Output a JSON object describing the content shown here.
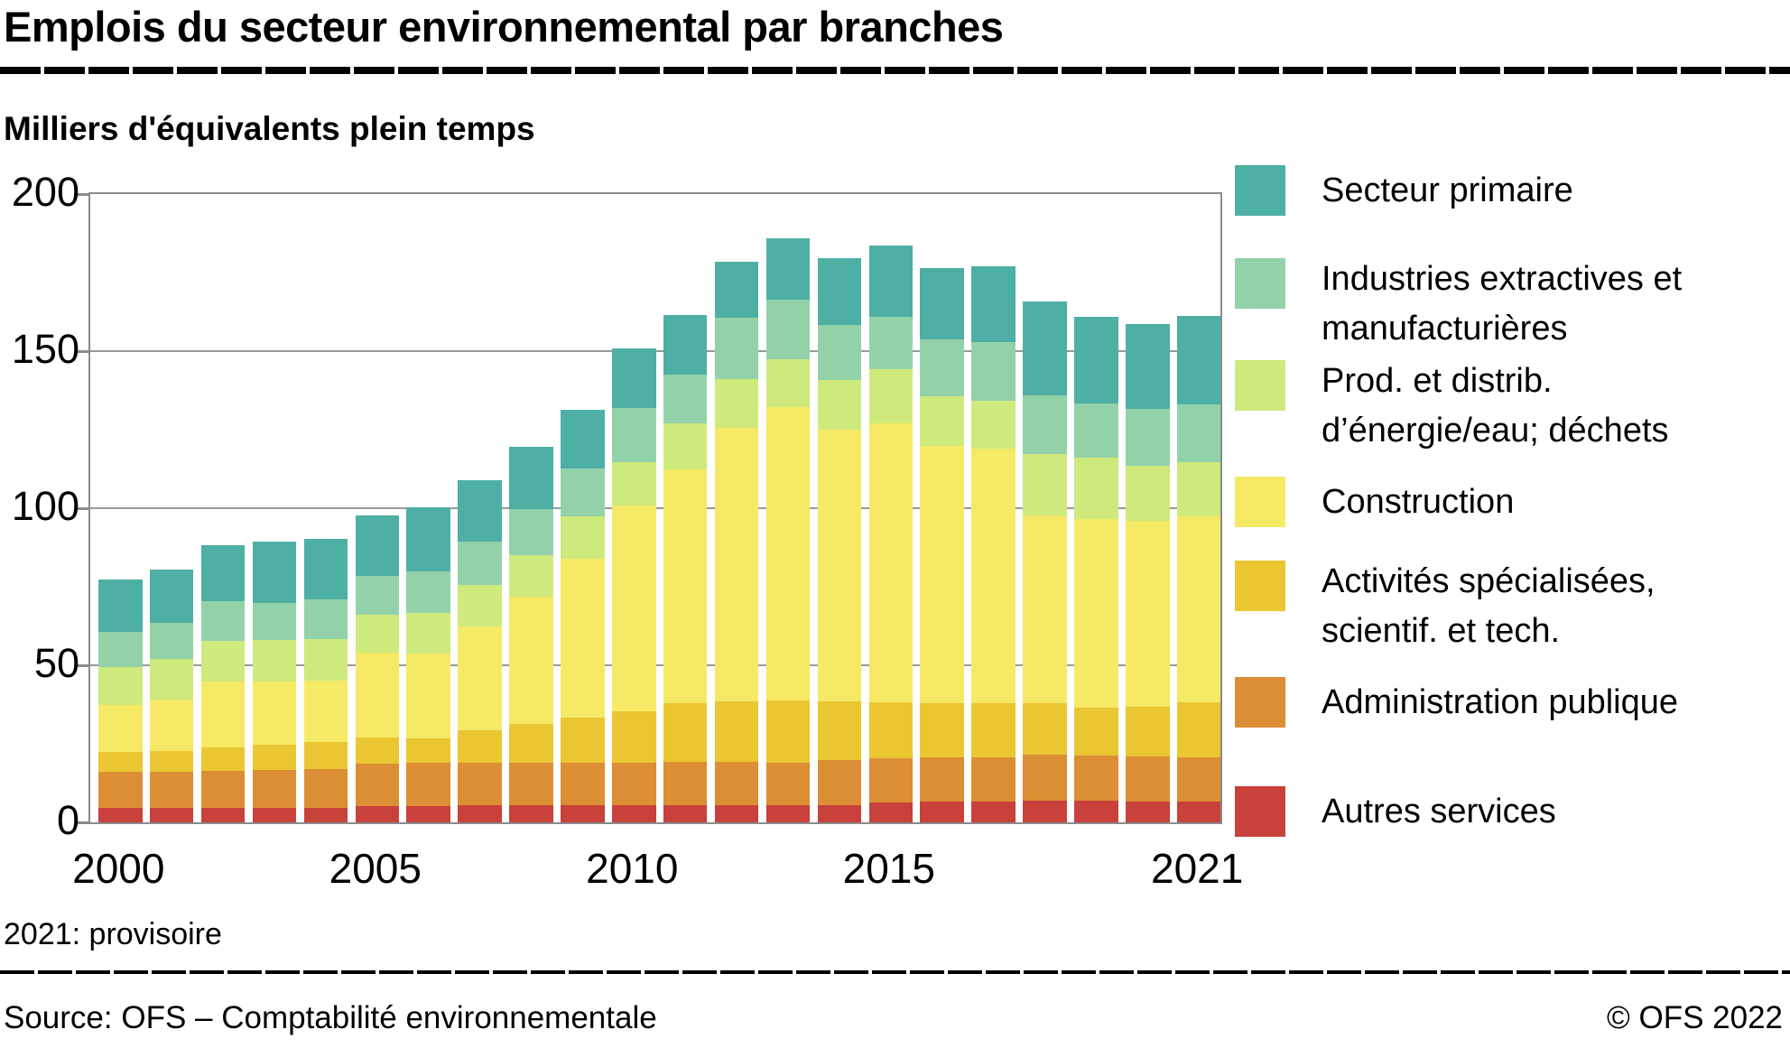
{
  "header": {
    "title": "Emplois du secteur environnemental par branches",
    "subtitle": "Milliers d'équivalents plein temps"
  },
  "footer": {
    "note": "2021: provisoire",
    "source": "Source: OFS – Comptabilité environnementale",
    "copyright": "© OFS 2022"
  },
  "colors": {
    "grid": "#999999",
    "frame": "#8b8b8b",
    "text": "#000000"
  },
  "chart_data": {
    "type": "bar",
    "stacked": true,
    "title": "Emplois du secteur environnemental par branches",
    "ylabel": "Milliers d'équivalents plein temps",
    "xlabel": "",
    "ylim": [
      0,
      200
    ],
    "yticks": [
      0,
      50,
      100,
      150,
      200
    ],
    "grid": "horizontal",
    "legend_position": "right",
    "categories": [
      2000,
      2001,
      2002,
      2003,
      2004,
      2005,
      2006,
      2007,
      2008,
      2009,
      2010,
      2011,
      2012,
      2013,
      2014,
      2015,
      2016,
      2017,
      2018,
      2019,
      2020,
      2021
    ],
    "xtick_labels": [
      "2000",
      "2005",
      "2010",
      "2015",
      "2021"
    ],
    "xtick_years": [
      2000,
      2005,
      2010,
      2015,
      2021
    ],
    "series": [
      {
        "name": "Autres services",
        "legend_lines": [
          "Autres services"
        ],
        "color": "#c8413b",
        "values": [
          4.7,
          4.7,
          4.7,
          4.7,
          4.7,
          5.2,
          5.2,
          5.5,
          5.5,
          5.5,
          5.5,
          5.6,
          5.6,
          5.6,
          5.6,
          6.4,
          6.6,
          6.6,
          6.8,
          6.8,
          6.6,
          6.5
        ]
      },
      {
        "name": "Administration publique",
        "legend_lines": [
          "Administration publique"
        ],
        "color": "#dc8e35",
        "values": [
          11.3,
          11.3,
          11.7,
          11.9,
          12.3,
          13.5,
          13.7,
          13.6,
          13.6,
          13.4,
          13.6,
          13.8,
          13.8,
          13.5,
          14.1,
          13.9,
          14.2,
          14.1,
          14.8,
          14.5,
          14.3,
          14.3
        ]
      },
      {
        "name": "Activités spécialisées, scientif. et tech.",
        "legend_lines": [
          "Activités spécialisées,",
          "scientif. et tech."
        ],
        "color": "#ebc633",
        "values": [
          6.5,
          6.6,
          7.5,
          8.2,
          8.6,
          8.4,
          7.8,
          10.1,
          12.2,
          14.3,
          16.2,
          18.4,
          19.1,
          19.7,
          18.8,
          17.9,
          17.0,
          17.2,
          16.2,
          15.2,
          15.8,
          17.3
        ]
      },
      {
        "name": "Construction",
        "legend_lines": [
          "Construction"
        ],
        "color": "#f5e966",
        "values": [
          14.9,
          16.6,
          21.0,
          20.1,
          19.5,
          26.8,
          27.1,
          33.2,
          40.5,
          50.6,
          65.5,
          74.7,
          87.0,
          93.4,
          86.5,
          88.8,
          81.9,
          81.1,
          60.0,
          60.1,
          59.3,
          59.2
        ]
      },
      {
        "name": "Prod. et distrib. d’énergie/eau; déchets",
        "legend_lines": [
          "Prod. et distrib.",
          "d’énergie/eau; déchets"
        ],
        "color": "#cee97c",
        "values": [
          12.1,
          12.7,
          12.9,
          13.2,
          13.3,
          12.2,
          13.0,
          13.3,
          13.2,
          13.6,
          13.9,
          14.5,
          15.5,
          15.3,
          15.8,
          17.2,
          15.8,
          15.3,
          19.5,
          19.4,
          17.5,
          17.5
        ]
      },
      {
        "name": "Industries extractives et manufacturières",
        "legend_lines": [
          "Industries extractives et",
          "manufacturières"
        ],
        "color": "#93d2a9",
        "values": [
          11.2,
          11.5,
          12.5,
          11.7,
          12.6,
          12.4,
          13.2,
          13.6,
          14.8,
          15.3,
          17.2,
          15.6,
          19.7,
          19.0,
          17.5,
          16.7,
          18.2,
          18.6,
          18.5,
          17.4,
          18.0,
          18.2
        ]
      },
      {
        "name": "Secteur primaire",
        "legend_lines": [
          "Secteur primaire"
        ],
        "color": "#4eafa4",
        "values": [
          16.5,
          17.0,
          17.8,
          19.7,
          19.2,
          19.3,
          20.2,
          19.6,
          19.7,
          18.5,
          19.0,
          18.9,
          17.8,
          19.5,
          21.2,
          22.6,
          22.8,
          24.1,
          30.0,
          27.6,
          27.1,
          28.3
        ]
      }
    ]
  },
  "legend_layout": {
    "tops": [
      183,
      286,
      399,
      528,
      621,
      750,
      871
    ]
  }
}
